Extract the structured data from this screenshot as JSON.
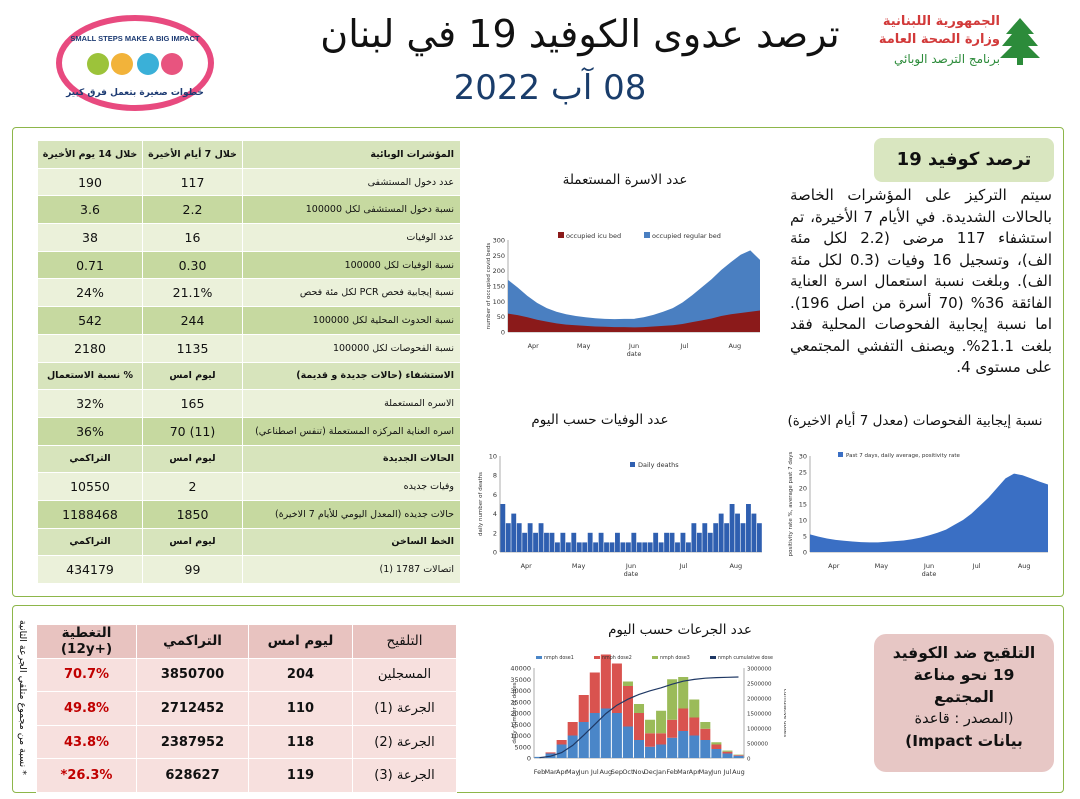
{
  "header": {
    "title": "ترصد عدوى الكوفيد 19 في لبنان",
    "date": "08 آب 2022",
    "ministry_line1": "الجمهورية اللبنانية",
    "ministry_line2": "وزارة الصحة العامة",
    "ministry_line3": "برنامج الترصد الوبائي",
    "logo_line1": "SMALL STEPS MAKE A BIG IMPACT",
    "logo_line2": "خطوات صغيرة بتعمل فرق كبير"
  },
  "indicators": {
    "header": [
      "المؤشرات الوبائية",
      "خلال 7 أيام الأخيرة",
      "خلال 14 يوم الأخيرة"
    ],
    "rows": [
      [
        "عدد دخول المستشفى",
        "117",
        "190"
      ],
      [
        "نسبة دخول المستشفى لكل 100000",
        "2.2",
        "3.6"
      ],
      [
        "عدد الوفيات",
        "16",
        "38"
      ],
      [
        "نسبة الوفيات لكل 100000",
        "0.30",
        "0.71"
      ],
      [
        "نسبة إيجابية فحص PCR لكل مئة فحص",
        "21.1%",
        "24%"
      ],
      [
        "نسبة الحدوث المحلية لكل 100000",
        "244",
        "542"
      ],
      [
        "نسبة الفحوصات لكل 100000",
        "1135",
        "2180"
      ]
    ],
    "beds_header": [
      "الاستشفاء (حالات جديدة و قديمة)",
      "ليوم امس",
      "% نسبة الاستعمال"
    ],
    "beds_rows": [
      [
        "الاسره المستعملة",
        "165",
        "32%"
      ],
      [
        "اسره العناية المركزه المستعملة (تنفس اصطناعي)",
        "(11) 70",
        "36%"
      ]
    ],
    "cases_header": [
      "الحالات الجديدة",
      "ليوم امس",
      "التراكمي"
    ],
    "cases_rows": [
      [
        "وفيات جديده",
        "2",
        "10550"
      ],
      [
        "حالات جديده (المعدل اليومي للأيام 7 الاخيرة)",
        "1850",
        "1188468"
      ]
    ],
    "hotline_header": [
      "الخط الساخن",
      "ليوم امس",
      "التراكمي"
    ],
    "hotline_rows": [
      [
        "اتصالات 1787 (1)",
        "99",
        "434179"
      ]
    ]
  },
  "surveillance_box": {
    "badge": "ترصد كوفيد 19",
    "text": "سيتم التركيز على المؤشرات الخاصة بالحالات الشديدة. في الأيام 7 الأخيرة، تم استشفاء 117 مرضى (2.2 لكل مئة الف)، وتسجيل 16 وفيات (0.3 لكل مئة الف). وبلغت نسبة استعمال اسرة العناية الفائقة 36% (70 أسرة من اصل 196). اما نسبة إيجابية الفحوصات المحلية فقد بلغت 21.1%. ويصنف التفشي المجتمعي على مستوى 4."
  },
  "vaccination": {
    "header": [
      "التلقيح",
      "ليوم امس",
      "التراكمي",
      "التغطية (+12y)"
    ],
    "rows": [
      [
        "المسجلين",
        "204",
        "3850700",
        "70.7%"
      ],
      [
        "الجرعة (1)",
        "110",
        "2712452",
        "49.8%"
      ],
      [
        "الجرعة (2)",
        "118",
        "2387952",
        "43.8%"
      ],
      [
        "الجرعة (3)",
        "119",
        "628627",
        "26.3%*"
      ]
    ],
    "note": "* نسبة من مجموع متلقي الجرعة الثانية",
    "badge_line1": "التلقيح ضد الكوفيد",
    "badge_line2": "19 نحو مناعة",
    "badge_line3": "المجتمع",
    "badge_line4": "(المصدر : قاعدة",
    "badge_line5": "بيانات Impact)"
  },
  "colors": {
    "icu": "#8b1a1a",
    "regular": "#4a7fc1",
    "daily_deaths": "#2f5fb0",
    "positivity": "#3a6fc4",
    "dose1": "#4a86c8",
    "dose2": "#d9534f",
    "dose3": "#9bbb59",
    "cumulative": "#1f3864"
  },
  "chart_data": [
    {
      "type": "area",
      "title": "عدد الاسرة المستعملة",
      "ylabel": "number of occupied covid beds",
      "xlabel": "date",
      "ylim": [
        0,
        300
      ],
      "yticks": [
        0,
        50,
        100,
        150,
        200,
        250,
        300
      ],
      "months": [
        "Apr",
        "May",
        "Jun",
        "Jul",
        "Aug"
      ],
      "series": [
        {
          "name": "occupied icu bed",
          "values": [
            60,
            55,
            48,
            40,
            34,
            28,
            24,
            22,
            20,
            18,
            17,
            16,
            16,
            15,
            16,
            18,
            20,
            22,
            26,
            32,
            38,
            44,
            52,
            58,
            62,
            66,
            70
          ]
        },
        {
          "name": "occupied regular bed",
          "values": [
            110,
            90,
            70,
            55,
            44,
            38,
            34,
            30,
            28,
            27,
            26,
            26,
            27,
            28,
            32,
            38,
            46,
            56,
            70,
            88,
            108,
            128,
            150,
            170,
            190,
            200,
            165
          ]
        }
      ]
    },
    {
      "type": "bar",
      "title": "عدد الوفيات حسب اليوم",
      "ylabel": "daily number of deaths",
      "xlabel": "date",
      "ylim": [
        0,
        10
      ],
      "yticks": [
        0,
        2,
        4,
        6,
        8,
        10
      ],
      "months": [
        "Apr",
        "May",
        "Jun",
        "Jul",
        "Aug"
      ],
      "series": [
        {
          "name": "Daily deaths",
          "values": [
            5,
            3,
            4,
            3,
            2,
            3,
            2,
            3,
            2,
            2,
            1,
            2,
            1,
            2,
            1,
            1,
            2,
            1,
            2,
            1,
            1,
            2,
            1,
            1,
            2,
            1,
            1,
            1,
            2,
            1,
            2,
            2,
            1,
            2,
            1,
            3,
            2,
            3,
            2,
            3,
            4,
            3,
            5,
            4,
            3,
            5,
            4,
            3
          ]
        }
      ]
    },
    {
      "type": "line",
      "title": "نسبة إيجابية الفحوصات (معدل 7 أيام الاخيرة)",
      "ylabel": "positivity rate %, average past 7 days",
      "xlabel": "date",
      "ylim": [
        0,
        30
      ],
      "yticks": [
        0,
        5,
        10,
        15,
        20,
        25,
        30
      ],
      "months": [
        "Apr",
        "May",
        "Jun",
        "Jul",
        "Aug"
      ],
      "series": [
        {
          "name": "Past 7 days, daily average, positivity rate",
          "values": [
            5.5,
            4.8,
            4.2,
            3.8,
            3.5,
            3.3,
            3.1,
            3.0,
            3.0,
            3.2,
            3.4,
            3.6,
            4,
            4.5,
            5.2,
            6,
            7,
            8.5,
            10,
            12,
            14.5,
            17,
            20,
            23,
            24.5,
            24,
            23,
            22,
            21.1
          ]
        }
      ]
    },
    {
      "type": "bar",
      "title": "عدد الجرعات حسب اليوم",
      "ylabel": "daily number of doses",
      "y2label": "cumulative doses",
      "ylim": [
        0,
        40000
      ],
      "yticks": [
        0,
        5000,
        10000,
        15000,
        20000,
        25000,
        30000,
        35000,
        40000
      ],
      "y2ticks": [
        0,
        500000,
        1000000,
        1500000,
        2000000,
        2500000,
        3000000
      ],
      "months": [
        "Feb",
        "Mar",
        "Apr",
        "May",
        "Jun",
        "Jul",
        "Aug",
        "Sep",
        "Oct",
        "Nov",
        "Dec",
        "Jan",
        "Feb",
        "Mar",
        "Apr",
        "May",
        "Jun",
        "Jul",
        "Aug"
      ],
      "series": [
        {
          "name": "nmph dose1",
          "values": [
            500,
            2000,
            6000,
            10000,
            16000,
            20000,
            22000,
            20000,
            14000,
            8000,
            5000,
            6000,
            9000,
            12000,
            10000,
            8000,
            4000,
            2000,
            1000
          ]
        },
        {
          "name": "nmph dose2",
          "values": [
            0,
            500,
            2000,
            6000,
            12000,
            18000,
            24000,
            22000,
            18000,
            12000,
            6000,
            5000,
            8000,
            10000,
            8000,
            5000,
            2000,
            800,
            300
          ]
        },
        {
          "name": "nmph dose3",
          "values": [
            0,
            0,
            0,
            0,
            0,
            0,
            0,
            0,
            2000,
            4000,
            6000,
            10000,
            18000,
            14000,
            8000,
            3000,
            1000,
            500,
            200
          ]
        },
        {
          "name": "nmph cumulative dose",
          "values": [
            10000,
            60000,
            180000,
            420000,
            760000,
            1120000,
            1480000,
            1760000,
            1960000,
            2120000,
            2240000,
            2340000,
            2460000,
            2560000,
            2620000,
            2660000,
            2680000,
            2690000,
            2700000
          ]
        }
      ]
    }
  ]
}
